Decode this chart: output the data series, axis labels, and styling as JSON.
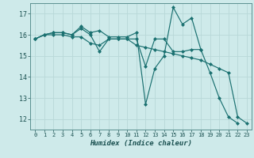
{
  "title": "",
  "xlabel": "Humidex (Indice chaleur)",
  "ylabel": "",
  "background_color": "#ceeaea",
  "grid_color": "#b8d8d8",
  "line_color": "#1a7070",
  "marker_color": "#1a7070",
  "xlim": [
    -0.5,
    23.5
  ],
  "ylim": [
    11.5,
    17.5
  ],
  "yticks": [
    12,
    13,
    14,
    15,
    16,
    17
  ],
  "xticks": [
    0,
    1,
    2,
    3,
    4,
    5,
    6,
    7,
    8,
    9,
    10,
    11,
    12,
    13,
    14,
    15,
    16,
    17,
    18,
    19,
    20,
    21,
    22,
    23
  ],
  "series": [
    {
      "x": [
        0,
        1,
        2,
        3,
        4,
        5,
        6,
        7,
        8,
        9,
        10,
        11,
        12,
        13,
        14,
        15,
        16,
        17,
        18,
        19,
        20,
        21,
        22
      ],
      "y": [
        15.8,
        16.0,
        16.1,
        16.1,
        16.0,
        16.4,
        16.1,
        16.2,
        15.9,
        15.9,
        15.9,
        16.1,
        12.7,
        14.4,
        15.0,
        17.3,
        16.5,
        16.8,
        15.3,
        14.2,
        13.0,
        12.1,
        11.8
      ]
    },
    {
      "x": [
        0,
        1,
        2,
        3,
        4,
        5,
        6,
        7,
        8,
        9,
        10,
        11,
        12,
        13,
        14,
        15,
        16,
        17,
        18
      ],
      "y": [
        15.8,
        16.0,
        16.1,
        16.1,
        16.0,
        16.3,
        16.0,
        15.2,
        15.8,
        15.8,
        15.8,
        15.8,
        14.5,
        15.8,
        15.8,
        15.2,
        15.2,
        15.3,
        15.3
      ]
    },
    {
      "x": [
        0,
        1,
        2,
        3,
        4,
        5,
        6,
        7,
        8,
        9,
        10,
        11,
        12,
        13,
        14,
        15,
        16,
        17,
        18,
        19,
        20,
        21,
        22,
        23
      ],
      "y": [
        15.8,
        16.0,
        16.0,
        16.0,
        15.9,
        15.9,
        15.6,
        15.5,
        15.8,
        15.8,
        15.8,
        15.5,
        15.4,
        15.3,
        15.2,
        15.1,
        15.0,
        14.9,
        14.8,
        14.6,
        14.4,
        14.2,
        12.1,
        11.8
      ]
    }
  ]
}
